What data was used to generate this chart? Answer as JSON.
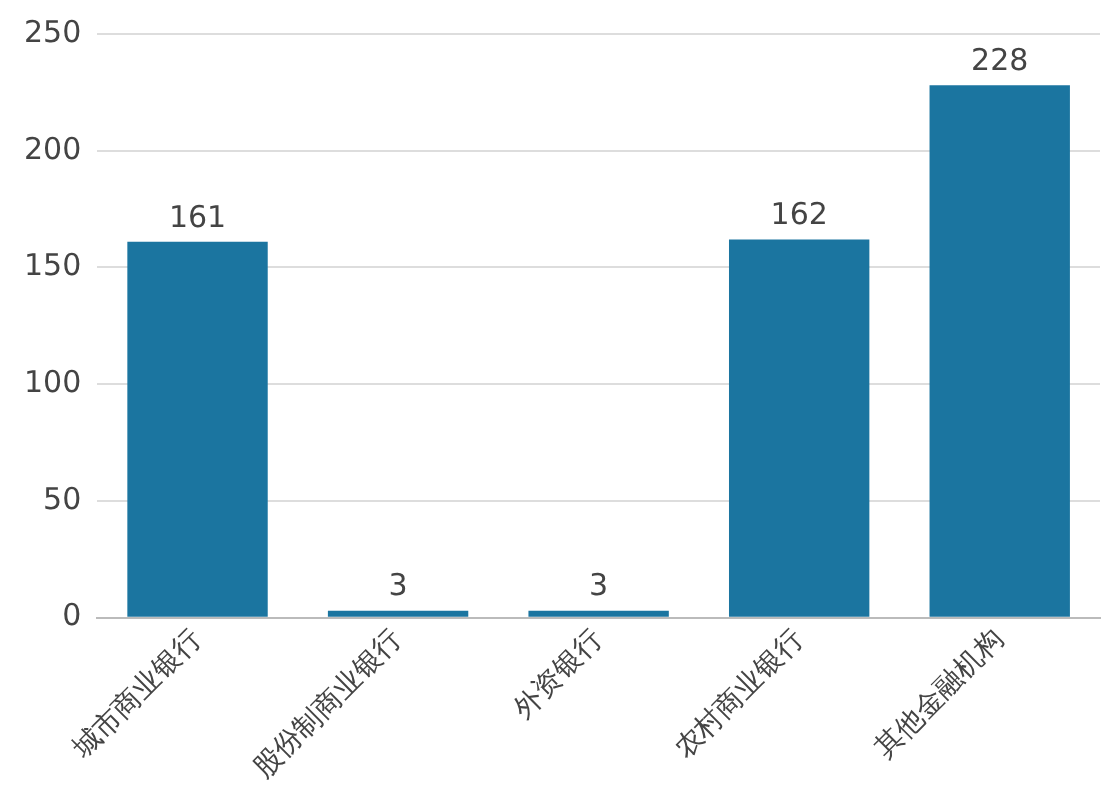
{
  "chart_data": {
    "type": "bar",
    "categories": [
      "城市商业银行",
      "股份制商业银行",
      "外资银行",
      "农村商业银行",
      "其他金融机构"
    ],
    "values": [
      161,
      3,
      3,
      162,
      228
    ],
    "color": "#1b75a0",
    "ylim": [
      0,
      250
    ],
    "yticks": [
      0,
      50,
      100,
      150,
      200,
      250
    ],
    "grid": "y",
    "data_labels": true,
    "legend": false
  }
}
